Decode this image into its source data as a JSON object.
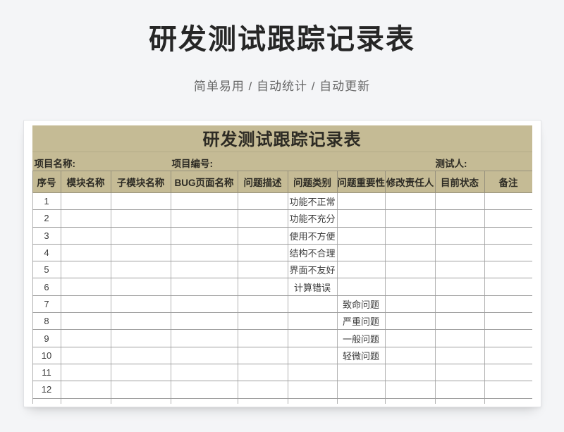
{
  "page": {
    "main_title": "研发测试跟踪记录表",
    "subtitle": "简单易用 / 自动统计 / 自动更新"
  },
  "sheet": {
    "title": "研发测试跟踪记录表",
    "info_fields": [
      {
        "label": "项目名称:"
      },
      {
        "label": "项目编号:"
      },
      {
        "label": "测试人:"
      }
    ],
    "columns": [
      "序号",
      "模块名称",
      "子模块名称",
      "BUG页面名称",
      "问题描述",
      "问题类别",
      "问题重要性",
      "修改责任人",
      "目前状态",
      "备注"
    ],
    "rows": [
      [
        "1",
        "",
        "",
        "",
        "",
        "功能不正常",
        "",
        "",
        "",
        ""
      ],
      [
        "2",
        "",
        "",
        "",
        "",
        "功能不充分",
        "",
        "",
        "",
        ""
      ],
      [
        "3",
        "",
        "",
        "",
        "",
        "使用不方便",
        "",
        "",
        "",
        ""
      ],
      [
        "4",
        "",
        "",
        "",
        "",
        "结构不合理",
        "",
        "",
        "",
        ""
      ],
      [
        "5",
        "",
        "",
        "",
        "",
        "界面不友好",
        "",
        "",
        "",
        ""
      ],
      [
        "6",
        "",
        "",
        "",
        "",
        "计算错误",
        "",
        "",
        "",
        ""
      ],
      [
        "7",
        "",
        "",
        "",
        "",
        "",
        "致命问题",
        "",
        "",
        ""
      ],
      [
        "8",
        "",
        "",
        "",
        "",
        "",
        "严重问题",
        "",
        "",
        ""
      ],
      [
        "9",
        "",
        "",
        "",
        "",
        "",
        "一般问题",
        "",
        "",
        ""
      ],
      [
        "10",
        "",
        "",
        "",
        "",
        "",
        "轻微问题",
        "",
        "",
        ""
      ],
      [
        "11",
        "",
        "",
        "",
        "",
        "",
        "",
        "",
        "",
        ""
      ],
      [
        "12",
        "",
        "",
        "",
        "",
        "",
        "",
        "",
        "",
        ""
      ],
      [
        "",
        "",
        "",
        "",
        "",
        "",
        "",
        "",
        "",
        ""
      ]
    ]
  },
  "colors": {
    "page_bg": "#f4f5f7",
    "band_bg": "#c5bb95",
    "card_bg": "#ffffff",
    "band_grid": "#97917d",
    "grid_dark": "#9e9e9e",
    "grid_light": "#b2b2b2",
    "title_color": "#262626",
    "subtitle_color": "#666666",
    "band_text": "#2d2b24",
    "body_text": "#3b3b3b"
  }
}
